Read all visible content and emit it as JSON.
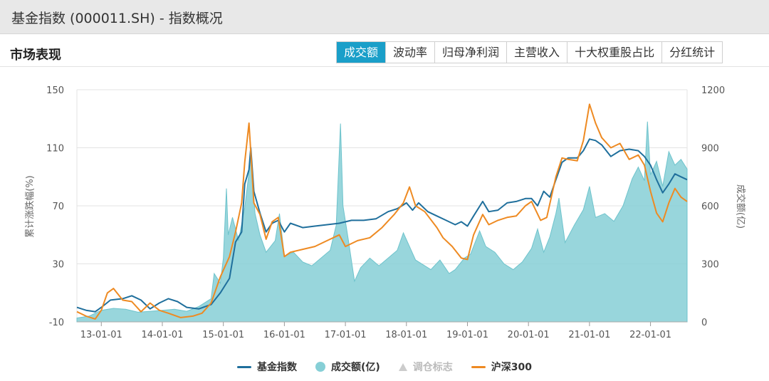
{
  "window": {
    "title": "基金指数 (000011.SH) - 指数概况"
  },
  "section": {
    "title": "市场表现"
  },
  "tabs": [
    {
      "label": "成交额",
      "active": true
    },
    {
      "label": "波动率",
      "active": false
    },
    {
      "label": "归母净利润",
      "active": false
    },
    {
      "label": "主营收入",
      "active": false
    },
    {
      "label": "十大权重股占比",
      "active": false
    },
    {
      "label": "分红统计",
      "active": false
    }
  ],
  "colors": {
    "fund_index": "#1f6f9c",
    "turnover": "#86cfd6",
    "rebalance": "#cccccc",
    "hs300": "#ee8a22",
    "active_tab": "#1a9fc9"
  },
  "legend": {
    "fund_index": "基金指数",
    "turnover": "成交额(亿)",
    "rebalance": "调仓标志",
    "hs300": "沪深300"
  },
  "chart_data": {
    "type": "line",
    "ylabel": "累计涨跌幅(%)",
    "ylabel_right": "成交额(亿)",
    "ylim": [
      -10,
      150
    ],
    "y_ticks": [
      -10,
      30,
      70,
      110,
      150
    ],
    "ylim_right": [
      0,
      1200
    ],
    "y_ticks_right": [
      0,
      300,
      600,
      900,
      1200
    ],
    "xlim": [
      2012.6,
      2022.6
    ],
    "x_tick_labels": [
      "13-01-01",
      "14-01-01",
      "15-01-01",
      "16-01-01",
      "17-01-01",
      "18-01-01",
      "19-01-01",
      "20-01-01",
      "21-01-01",
      "22-01-01"
    ],
    "x_tick_values": [
      2013,
      2014,
      2015,
      2016,
      2017,
      2018,
      2019,
      2020,
      2021,
      2022
    ],
    "legend_position": "bottom",
    "series": [
      {
        "name": "基金指数",
        "axis": "left",
        "points": [
          [
            2012.6,
            0
          ],
          [
            2012.75,
            -2
          ],
          [
            2012.9,
            -3
          ],
          [
            2013.0,
            0
          ],
          [
            2013.15,
            5
          ],
          [
            2013.35,
            6
          ],
          [
            2013.5,
            8
          ],
          [
            2013.65,
            5
          ],
          [
            2013.8,
            -1
          ],
          [
            2013.95,
            3
          ],
          [
            2014.1,
            6
          ],
          [
            2014.25,
            4
          ],
          [
            2014.4,
            0
          ],
          [
            2014.6,
            -1
          ],
          [
            2014.8,
            2
          ],
          [
            2014.95,
            10
          ],
          [
            2015.1,
            20
          ],
          [
            2015.2,
            45
          ],
          [
            2015.3,
            52
          ],
          [
            2015.35,
            85
          ],
          [
            2015.42,
            95
          ],
          [
            2015.45,
            110
          ],
          [
            2015.5,
            80
          ],
          [
            2015.6,
            65
          ],
          [
            2015.7,
            52
          ],
          [
            2015.8,
            58
          ],
          [
            2015.9,
            60
          ],
          [
            2016.0,
            52
          ],
          [
            2016.1,
            58
          ],
          [
            2016.3,
            55
          ],
          [
            2016.5,
            56
          ],
          [
            2016.7,
            57
          ],
          [
            2016.9,
            58
          ],
          [
            2017.1,
            60
          ],
          [
            2017.3,
            60
          ],
          [
            2017.5,
            61
          ],
          [
            2017.7,
            66
          ],
          [
            2017.85,
            68
          ],
          [
            2018.0,
            72
          ],
          [
            2018.1,
            67
          ],
          [
            2018.2,
            72
          ],
          [
            2018.35,
            66
          ],
          [
            2018.5,
            63
          ],
          [
            2018.65,
            60
          ],
          [
            2018.8,
            57
          ],
          [
            2018.9,
            59
          ],
          [
            2019.0,
            56
          ],
          [
            2019.1,
            63
          ],
          [
            2019.25,
            73
          ],
          [
            2019.35,
            66
          ],
          [
            2019.5,
            67
          ],
          [
            2019.65,
            72
          ],
          [
            2019.8,
            73
          ],
          [
            2019.95,
            75
          ],
          [
            2020.05,
            75
          ],
          [
            2020.15,
            70
          ],
          [
            2020.25,
            80
          ],
          [
            2020.35,
            76
          ],
          [
            2020.45,
            88
          ],
          [
            2020.55,
            100
          ],
          [
            2020.65,
            103
          ],
          [
            2020.8,
            103
          ],
          [
            2020.9,
            108
          ],
          [
            2021.0,
            116
          ],
          [
            2021.1,
            115
          ],
          [
            2021.2,
            112
          ],
          [
            2021.35,
            104
          ],
          [
            2021.5,
            108
          ],
          [
            2021.65,
            109
          ],
          [
            2021.8,
            108
          ],
          [
            2021.9,
            104
          ],
          [
            2022.0,
            98
          ],
          [
            2022.1,
            88
          ],
          [
            2022.2,
            79
          ],
          [
            2022.3,
            85
          ],
          [
            2022.4,
            92
          ],
          [
            2022.5,
            90
          ],
          [
            2022.6,
            88
          ]
        ]
      },
      {
        "name": "沪深300",
        "axis": "left",
        "points": [
          [
            2012.6,
            -3
          ],
          [
            2012.75,
            -6
          ],
          [
            2012.9,
            -8
          ],
          [
            2013.0,
            -2
          ],
          [
            2013.1,
            10
          ],
          [
            2013.2,
            13
          ],
          [
            2013.35,
            5
          ],
          [
            2013.5,
            4
          ],
          [
            2013.65,
            -3
          ],
          [
            2013.8,
            3
          ],
          [
            2013.95,
            -2
          ],
          [
            2014.1,
            -4
          ],
          [
            2014.3,
            -7
          ],
          [
            2014.5,
            -6
          ],
          [
            2014.65,
            -4
          ],
          [
            2014.8,
            3
          ],
          [
            2014.95,
            21
          ],
          [
            2015.1,
            35
          ],
          [
            2015.2,
            52
          ],
          [
            2015.3,
            72
          ],
          [
            2015.35,
            100
          ],
          [
            2015.42,
            127
          ],
          [
            2015.45,
            107
          ],
          [
            2015.5,
            72
          ],
          [
            2015.6,
            64
          ],
          [
            2015.7,
            47
          ],
          [
            2015.8,
            59
          ],
          [
            2015.9,
            62
          ],
          [
            2016.0,
            35
          ],
          [
            2016.1,
            38
          ],
          [
            2016.3,
            40
          ],
          [
            2016.5,
            42
          ],
          [
            2016.7,
            46
          ],
          [
            2016.9,
            50
          ],
          [
            2017.0,
            42
          ],
          [
            2017.2,
            46
          ],
          [
            2017.4,
            48
          ],
          [
            2017.6,
            55
          ],
          [
            2017.8,
            64
          ],
          [
            2017.95,
            72
          ],
          [
            2018.05,
            83
          ],
          [
            2018.15,
            70
          ],
          [
            2018.3,
            66
          ],
          [
            2018.5,
            55
          ],
          [
            2018.6,
            48
          ],
          [
            2018.75,
            42
          ],
          [
            2018.9,
            34
          ],
          [
            2019.0,
            33
          ],
          [
            2019.1,
            50
          ],
          [
            2019.25,
            64
          ],
          [
            2019.35,
            57
          ],
          [
            2019.5,
            60
          ],
          [
            2019.65,
            62
          ],
          [
            2019.8,
            63
          ],
          [
            2019.95,
            70
          ],
          [
            2020.05,
            73
          ],
          [
            2020.2,
            60
          ],
          [
            2020.3,
            62
          ],
          [
            2020.45,
            90
          ],
          [
            2020.55,
            103
          ],
          [
            2020.65,
            102
          ],
          [
            2020.8,
            101
          ],
          [
            2020.9,
            115
          ],
          [
            2021.0,
            140
          ],
          [
            2021.1,
            127
          ],
          [
            2021.2,
            117
          ],
          [
            2021.35,
            110
          ],
          [
            2021.5,
            113
          ],
          [
            2021.65,
            102
          ],
          [
            2021.8,
            105
          ],
          [
            2021.9,
            98
          ],
          [
            2022.0,
            80
          ],
          [
            2022.1,
            65
          ],
          [
            2022.2,
            59
          ],
          [
            2022.3,
            72
          ],
          [
            2022.4,
            82
          ],
          [
            2022.5,
            76
          ],
          [
            2022.6,
            73
          ]
        ]
      },
      {
        "name": "成交额(亿)",
        "axis": "right",
        "points": [
          [
            2012.6,
            20
          ],
          [
            2012.8,
            30
          ],
          [
            2013.0,
            60
          ],
          [
            2013.2,
            70
          ],
          [
            2013.4,
            65
          ],
          [
            2013.6,
            50
          ],
          [
            2013.8,
            55
          ],
          [
            2014.0,
            60
          ],
          [
            2014.2,
            65
          ],
          [
            2014.4,
            55
          ],
          [
            2014.6,
            80
          ],
          [
            2014.8,
            120
          ],
          [
            2014.85,
            250
          ],
          [
            2014.95,
            200
          ],
          [
            2015.0,
            330
          ],
          [
            2015.05,
            690
          ],
          [
            2015.08,
            450
          ],
          [
            2015.15,
            540
          ],
          [
            2015.25,
            420
          ],
          [
            2015.35,
            590
          ],
          [
            2015.45,
            850
          ],
          [
            2015.52,
            560
          ],
          [
            2015.6,
            450
          ],
          [
            2015.7,
            360
          ],
          [
            2015.85,
            420
          ],
          [
            2015.92,
            560
          ],
          [
            2016.0,
            340
          ],
          [
            2016.15,
            360
          ],
          [
            2016.3,
            310
          ],
          [
            2016.45,
            290
          ],
          [
            2016.6,
            330
          ],
          [
            2016.75,
            370
          ],
          [
            2016.85,
            500
          ],
          [
            2016.92,
            1025
          ],
          [
            2016.96,
            600
          ],
          [
            2017.05,
            420
          ],
          [
            2017.15,
            210
          ],
          [
            2017.25,
            280
          ],
          [
            2017.4,
            330
          ],
          [
            2017.55,
            290
          ],
          [
            2017.7,
            330
          ],
          [
            2017.85,
            370
          ],
          [
            2017.95,
            460
          ],
          [
            2018.05,
            390
          ],
          [
            2018.15,
            320
          ],
          [
            2018.3,
            290
          ],
          [
            2018.4,
            270
          ],
          [
            2018.55,
            320
          ],
          [
            2018.7,
            250
          ],
          [
            2018.8,
            270
          ],
          [
            2018.95,
            330
          ],
          [
            2019.05,
            350
          ],
          [
            2019.2,
            470
          ],
          [
            2019.3,
            390
          ],
          [
            2019.45,
            360
          ],
          [
            2019.6,
            300
          ],
          [
            2019.75,
            270
          ],
          [
            2019.9,
            310
          ],
          [
            2020.05,
            380
          ],
          [
            2020.15,
            480
          ],
          [
            2020.25,
            360
          ],
          [
            2020.35,
            440
          ],
          [
            2020.45,
            560
          ],
          [
            2020.5,
            640
          ],
          [
            2020.6,
            410
          ],
          [
            2020.75,
            500
          ],
          [
            2020.9,
            580
          ],
          [
            2021.0,
            700
          ],
          [
            2021.1,
            540
          ],
          [
            2021.25,
            560
          ],
          [
            2021.4,
            520
          ],
          [
            2021.55,
            600
          ],
          [
            2021.7,
            740
          ],
          [
            2021.8,
            800
          ],
          [
            2021.9,
            730
          ],
          [
            2021.95,
            1035
          ],
          [
            2022.0,
            760
          ],
          [
            2022.1,
            830
          ],
          [
            2022.2,
            700
          ],
          [
            2022.3,
            880
          ],
          [
            2022.4,
            810
          ],
          [
            2022.5,
            840
          ],
          [
            2022.6,
            790
          ]
        ]
      }
    ]
  }
}
